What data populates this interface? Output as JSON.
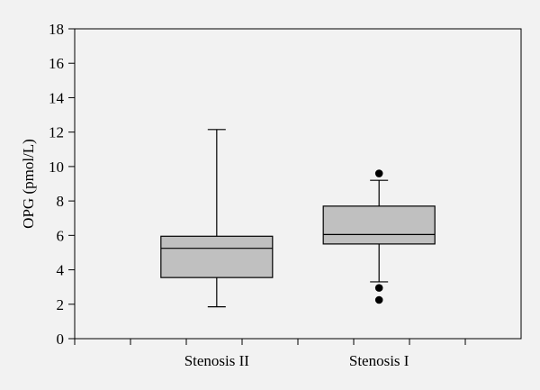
{
  "chart_data": {
    "type": "boxplot",
    "title": "",
    "xlabel": "",
    "ylabel": "OPG (pmol/L)",
    "ylim": [
      0,
      18
    ],
    "y_ticks": [
      "0",
      "2",
      "4",
      "6",
      "8",
      "10",
      "12",
      "14",
      "16",
      "18"
    ],
    "categories": [
      "Stenosis II",
      "Stenosis I"
    ],
    "boxes": [
      {
        "category": "Stenosis II",
        "whisker_low": 1.85,
        "q1": 3.55,
        "median": 5.25,
        "q3": 5.95,
        "whisker_high": 12.15,
        "outliers": []
      },
      {
        "category": "Stenosis I",
        "whisker_low": 3.3,
        "q1": 5.5,
        "median": 6.05,
        "q3": 7.7,
        "whisker_high": 9.2,
        "outliers": [
          9.6,
          2.95,
          2.25
        ]
      }
    ],
    "grid": false,
    "colors": {
      "box_fill": "#c0c0c0",
      "stroke": "#000000",
      "plot_background": "#f2f2f2"
    }
  }
}
